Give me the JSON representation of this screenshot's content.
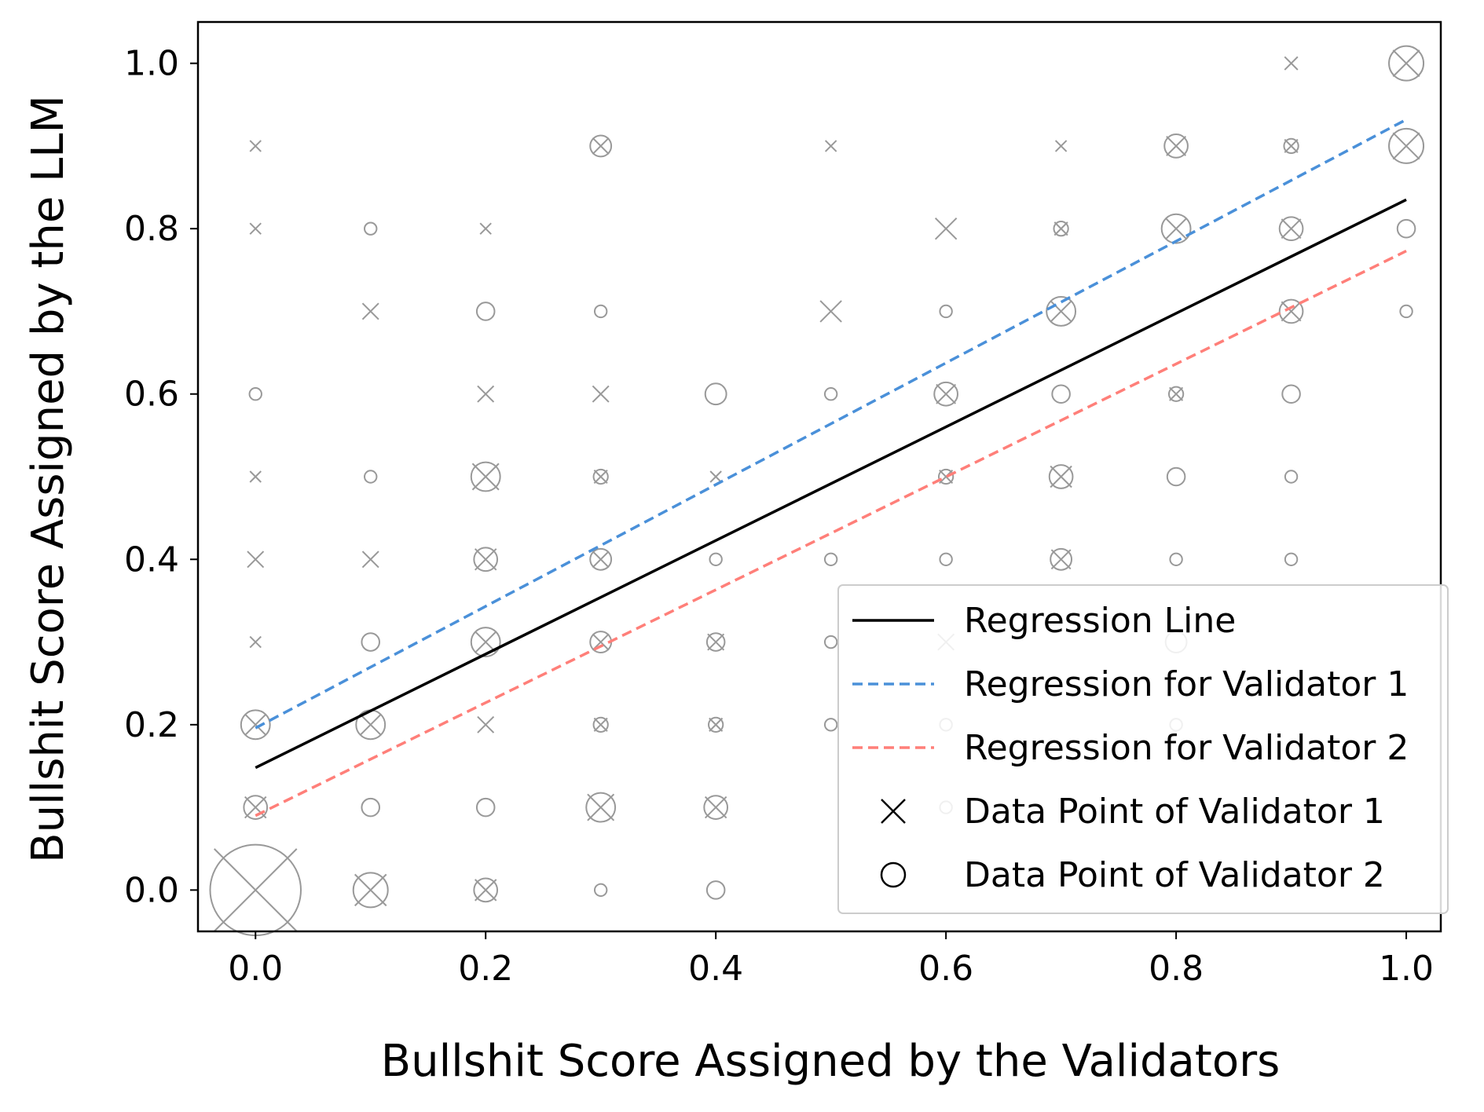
{
  "chart_data": {
    "type": "scatter",
    "title": "",
    "xlabel": "Bullshit Score Assigned by the Validators",
    "ylabel": "Bullshit Score Assigned by the LLM",
    "xlim": [
      -0.05,
      1.03
    ],
    "ylim": [
      -0.05,
      1.05
    ],
    "xticks": [
      "0.0",
      "0.2",
      "0.4",
      "0.6",
      "0.8",
      "1.0"
    ],
    "yticks": [
      "0.0",
      "0.2",
      "0.4",
      "0.6",
      "0.8",
      "1.0"
    ],
    "grid": false,
    "legend_position": "lower-right",
    "legend": [
      {
        "label": "Regression Line",
        "kind": "solid-line",
        "color": "#000000"
      },
      {
        "label": "Regression for Validator 1",
        "kind": "dashed-line",
        "color": "#4a90d9"
      },
      {
        "label": "Regression for Validator 2",
        "kind": "dashed-line",
        "color": "#ff7f79"
      },
      {
        "label": "Data Point of Validator 1",
        "kind": "x-marker",
        "color": "#000000"
      },
      {
        "label": "Data Point of Validator 2",
        "kind": "o-marker",
        "color": "#000000"
      }
    ],
    "marker_color": "#999999",
    "regression_lines": [
      {
        "name": "Regression Line",
        "x": [
          0.0,
          1.0
        ],
        "y": [
          0.148,
          0.835
        ],
        "color": "#000000",
        "dash": false
      },
      {
        "name": "Regression for Validator 1",
        "x": [
          0.0,
          1.0
        ],
        "y": [
          0.196,
          0.932
        ],
        "color": "#4a90d9",
        "dash": true
      },
      {
        "name": "Regression for Validator 2",
        "x": [
          0.0,
          1.0
        ],
        "y": [
          0.09,
          0.773
        ],
        "color": "#ff7f79",
        "dash": true
      }
    ],
    "series": [
      {
        "name": "Data Point of Validator 1",
        "marker": "x",
        "points": [
          {
            "x": 0.0,
            "y": 0.0,
            "count": 8
          },
          {
            "x": 0.0,
            "y": 0.1,
            "count": 2
          },
          {
            "x": 0.0,
            "y": 0.2,
            "count": 2
          },
          {
            "x": 0.0,
            "y": 0.3,
            "count": 1
          },
          {
            "x": 0.0,
            "y": 0.4,
            "count": 1.5
          },
          {
            "x": 0.0,
            "y": 0.5,
            "count": 1
          },
          {
            "x": 0.0,
            "y": 0.8,
            "count": 1
          },
          {
            "x": 0.0,
            "y": 0.9,
            "count": 1
          },
          {
            "x": 0.1,
            "y": 0.0,
            "count": 3
          },
          {
            "x": 0.1,
            "y": 0.2,
            "count": 2
          },
          {
            "x": 0.1,
            "y": 0.4,
            "count": 1.5
          },
          {
            "x": 0.1,
            "y": 0.7,
            "count": 1.5
          },
          {
            "x": 0.2,
            "y": 0.0,
            "count": 2
          },
          {
            "x": 0.2,
            "y": 0.2,
            "count": 1.5
          },
          {
            "x": 0.2,
            "y": 0.3,
            "count": 2
          },
          {
            "x": 0.2,
            "y": 0.4,
            "count": 2
          },
          {
            "x": 0.2,
            "y": 0.5,
            "count": 2.5
          },
          {
            "x": 0.2,
            "y": 0.6,
            "count": 1.5
          },
          {
            "x": 0.2,
            "y": 0.8,
            "count": 1
          },
          {
            "x": 0.3,
            "y": 0.1,
            "count": 2.5
          },
          {
            "x": 0.3,
            "y": 0.2,
            "count": 1.2
          },
          {
            "x": 0.3,
            "y": 0.3,
            "count": 1.5
          },
          {
            "x": 0.3,
            "y": 0.4,
            "count": 1.5
          },
          {
            "x": 0.3,
            "y": 0.5,
            "count": 1.2
          },
          {
            "x": 0.3,
            "y": 0.6,
            "count": 1.5
          },
          {
            "x": 0.3,
            "y": 0.9,
            "count": 1.5
          },
          {
            "x": 0.4,
            "y": 0.1,
            "count": 2
          },
          {
            "x": 0.4,
            "y": 0.2,
            "count": 1.2
          },
          {
            "x": 0.4,
            "y": 0.3,
            "count": 1.5
          },
          {
            "x": 0.4,
            "y": 0.5,
            "count": 1
          },
          {
            "x": 0.5,
            "y": 0.7,
            "count": 2
          },
          {
            "x": 0.5,
            "y": 0.9,
            "count": 1
          },
          {
            "x": 0.6,
            "y": 0.3,
            "count": 1.5
          },
          {
            "x": 0.6,
            "y": 0.5,
            "count": 1.2
          },
          {
            "x": 0.6,
            "y": 0.6,
            "count": 1.8
          },
          {
            "x": 0.6,
            "y": 0.8,
            "count": 2
          },
          {
            "x": 0.7,
            "y": 0.4,
            "count": 1.8
          },
          {
            "x": 0.7,
            "y": 0.5,
            "count": 2
          },
          {
            "x": 0.7,
            "y": 0.7,
            "count": 2
          },
          {
            "x": 0.7,
            "y": 0.8,
            "count": 1.2
          },
          {
            "x": 0.7,
            "y": 0.9,
            "count": 1
          },
          {
            "x": 0.8,
            "y": 0.6,
            "count": 1.2
          },
          {
            "x": 0.8,
            "y": 0.8,
            "count": 2
          },
          {
            "x": 0.8,
            "y": 0.9,
            "count": 1.8
          },
          {
            "x": 0.9,
            "y": 0.7,
            "count": 1.8
          },
          {
            "x": 0.9,
            "y": 0.8,
            "count": 1.8
          },
          {
            "x": 0.9,
            "y": 0.9,
            "count": 1.2
          },
          {
            "x": 0.9,
            "y": 1.0,
            "count": 1.2
          },
          {
            "x": 1.0,
            "y": 0.9,
            "count": 2.5
          },
          {
            "x": 1.0,
            "y": 1.0,
            "count": 2.5
          }
        ]
      },
      {
        "name": "Data Point of Validator 2",
        "marker": "o",
        "points": [
          {
            "x": 0.0,
            "y": 0.0,
            "count": 8
          },
          {
            "x": 0.0,
            "y": 0.1,
            "count": 2
          },
          {
            "x": 0.0,
            "y": 0.2,
            "count": 2.5
          },
          {
            "x": 0.0,
            "y": 0.6,
            "count": 1
          },
          {
            "x": 0.1,
            "y": 0.0,
            "count": 3
          },
          {
            "x": 0.1,
            "y": 0.1,
            "count": 1.5
          },
          {
            "x": 0.1,
            "y": 0.2,
            "count": 2.5
          },
          {
            "x": 0.1,
            "y": 0.3,
            "count": 1.5
          },
          {
            "x": 0.1,
            "y": 0.5,
            "count": 1
          },
          {
            "x": 0.1,
            "y": 0.8,
            "count": 1
          },
          {
            "x": 0.2,
            "y": 0.0,
            "count": 2
          },
          {
            "x": 0.2,
            "y": 0.1,
            "count": 1.5
          },
          {
            "x": 0.2,
            "y": 0.3,
            "count": 2.5
          },
          {
            "x": 0.2,
            "y": 0.4,
            "count": 2
          },
          {
            "x": 0.2,
            "y": 0.5,
            "count": 2.5
          },
          {
            "x": 0.2,
            "y": 0.7,
            "count": 1.5
          },
          {
            "x": 0.3,
            "y": 0.0,
            "count": 1
          },
          {
            "x": 0.3,
            "y": 0.1,
            "count": 2.5
          },
          {
            "x": 0.3,
            "y": 0.2,
            "count": 1.2
          },
          {
            "x": 0.3,
            "y": 0.3,
            "count": 1.8
          },
          {
            "x": 0.3,
            "y": 0.4,
            "count": 1.8
          },
          {
            "x": 0.3,
            "y": 0.5,
            "count": 1.2
          },
          {
            "x": 0.3,
            "y": 0.7,
            "count": 1
          },
          {
            "x": 0.3,
            "y": 0.9,
            "count": 1.8
          },
          {
            "x": 0.4,
            "y": 0.0,
            "count": 1.5
          },
          {
            "x": 0.4,
            "y": 0.1,
            "count": 2
          },
          {
            "x": 0.4,
            "y": 0.2,
            "count": 1.2
          },
          {
            "x": 0.4,
            "y": 0.3,
            "count": 1.5
          },
          {
            "x": 0.4,
            "y": 0.4,
            "count": 1
          },
          {
            "x": 0.4,
            "y": 0.6,
            "count": 1.8
          },
          {
            "x": 0.5,
            "y": 0.2,
            "count": 1
          },
          {
            "x": 0.5,
            "y": 0.3,
            "count": 1
          },
          {
            "x": 0.5,
            "y": 0.4,
            "count": 1
          },
          {
            "x": 0.5,
            "y": 0.6,
            "count": 1
          },
          {
            "x": 0.6,
            "y": 0.1,
            "count": 1
          },
          {
            "x": 0.6,
            "y": 0.2,
            "count": 1
          },
          {
            "x": 0.6,
            "y": 0.4,
            "count": 1
          },
          {
            "x": 0.6,
            "y": 0.5,
            "count": 1.2
          },
          {
            "x": 0.6,
            "y": 0.6,
            "count": 2
          },
          {
            "x": 0.6,
            "y": 0.7,
            "count": 1
          },
          {
            "x": 0.7,
            "y": 0.4,
            "count": 1.8
          },
          {
            "x": 0.7,
            "y": 0.5,
            "count": 2
          },
          {
            "x": 0.7,
            "y": 0.6,
            "count": 1.5
          },
          {
            "x": 0.7,
            "y": 0.7,
            "count": 2.5
          },
          {
            "x": 0.7,
            "y": 0.8,
            "count": 1.2
          },
          {
            "x": 0.8,
            "y": 0.2,
            "count": 1
          },
          {
            "x": 0.8,
            "y": 0.3,
            "count": 1.8
          },
          {
            "x": 0.8,
            "y": 0.4,
            "count": 1
          },
          {
            "x": 0.8,
            "y": 0.5,
            "count": 1.5
          },
          {
            "x": 0.8,
            "y": 0.6,
            "count": 1.2
          },
          {
            "x": 0.8,
            "y": 0.8,
            "count": 2.5
          },
          {
            "x": 0.8,
            "y": 0.9,
            "count": 2
          },
          {
            "x": 0.9,
            "y": 0.4,
            "count": 1
          },
          {
            "x": 0.9,
            "y": 0.5,
            "count": 1
          },
          {
            "x": 0.9,
            "y": 0.6,
            "count": 1.5
          },
          {
            "x": 0.9,
            "y": 0.7,
            "count": 2
          },
          {
            "x": 0.9,
            "y": 0.8,
            "count": 2
          },
          {
            "x": 0.9,
            "y": 0.9,
            "count": 1.2
          },
          {
            "x": 1.0,
            "y": 0.7,
            "count": 1
          },
          {
            "x": 1.0,
            "y": 0.8,
            "count": 1.5
          },
          {
            "x": 1.0,
            "y": 0.9,
            "count": 3
          },
          {
            "x": 1.0,
            "y": 1.0,
            "count": 3
          }
        ]
      }
    ]
  }
}
